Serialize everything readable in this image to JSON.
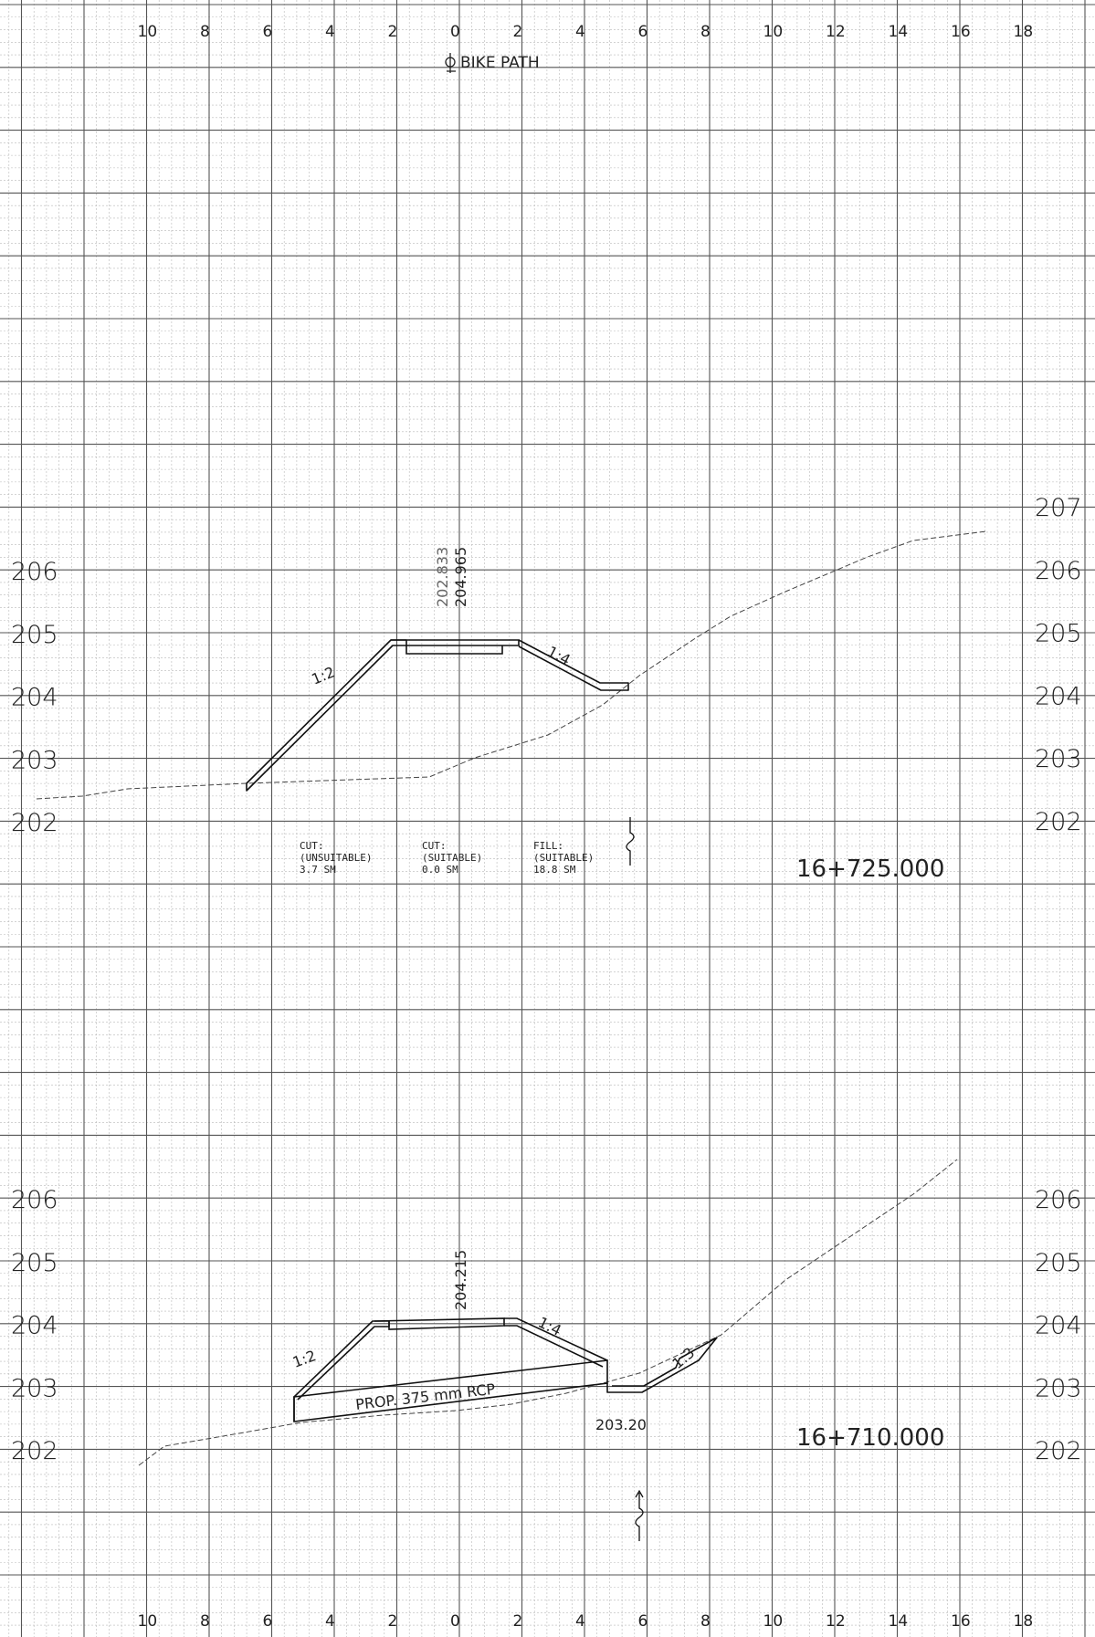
{
  "drawing": {
    "centerline_label": "BIKE PATH",
    "offset_ticks": [
      "10",
      "8",
      "6",
      "4",
      "2",
      "0",
      "2",
      "4",
      "6",
      "8",
      "10",
      "12",
      "14",
      "16",
      "18"
    ]
  },
  "section_upper": {
    "station": "16+725.000",
    "elevations_left": [
      "206",
      "205",
      "204",
      "203",
      "202"
    ],
    "elevations_right": [
      "207",
      "206",
      "205",
      "204",
      "203",
      "202"
    ],
    "finished_grade_label": "204.965",
    "existing_ground_label": "202.833",
    "slope_left": "1:2",
    "slope_right": "1:4",
    "quantities": [
      {
        "title": "CUT:",
        "material": "(UNSUITABLE)",
        "area": "3.7 SM"
      },
      {
        "title": "CUT:",
        "material": "(SUITABLE)",
        "area": "0.0 SM"
      },
      {
        "title": "FILL:",
        "material": "(SUITABLE)",
        "area": "18.8 SM"
      }
    ]
  },
  "section_lower": {
    "station": "16+710.000",
    "elevations_left": [
      "206",
      "205",
      "204",
      "203",
      "202"
    ],
    "elevations_right": [
      "206",
      "205",
      "204",
      "203",
      "202"
    ],
    "finished_grade_label": "204.215",
    "slope_left": "1:2",
    "slope_right": "1:4",
    "slope_ditch": "1:3",
    "pipe_label": "PROP. 375 mm RCP",
    "invert_label": "203.20"
  }
}
